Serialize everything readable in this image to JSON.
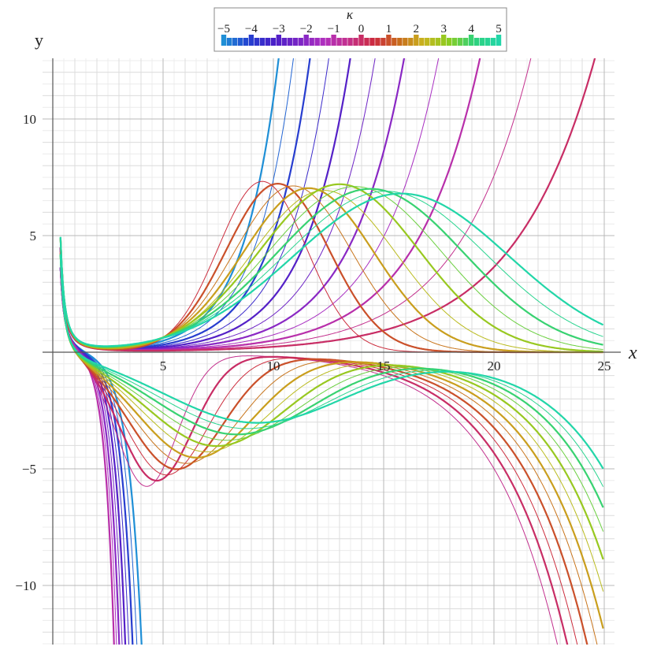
{
  "chart_data": {
    "type": "line",
    "xlabel": "x",
    "ylabel": "y",
    "xlim": [
      0,
      25
    ],
    "ylim": [
      -12.5,
      12.5
    ],
    "xticks": [
      5,
      10,
      15,
      20,
      25
    ],
    "yticks": [
      -10,
      -5,
      5,
      10
    ],
    "grid": true,
    "colorbar": {
      "title": "κ",
      "labels": [
        "−5",
        "−4",
        "−3",
        "−2",
        "−1",
        "0",
        "1",
        "2",
        "3",
        "4",
        "5"
      ],
      "values": [
        -5,
        -4,
        -3,
        -2,
        -1,
        0,
        1,
        2,
        3,
        4,
        5
      ],
      "colors": [
        "#1f8fd6",
        "#2340d0",
        "#4a1fc8",
        "#7a25c5",
        "#b02fc0",
        "#c4308a",
        "#cc2a3f",
        "#c86a1c",
        "#c9b51e",
        "#8ccd21",
        "#2fd27a",
        "#22d6a8"
      ],
      "placement": "top-center"
    },
    "series_family": {
      "kappa_values": [
        -5,
        -4.5,
        -4,
        -3.5,
        -3,
        -2.5,
        -2,
        -1.5,
        -1,
        -0.5,
        0,
        0.5,
        1,
        1.5,
        2,
        2.5,
        3,
        3.5,
        4,
        4.5,
        5
      ],
      "branches": [
        "upper",
        "lower"
      ]
    }
  }
}
